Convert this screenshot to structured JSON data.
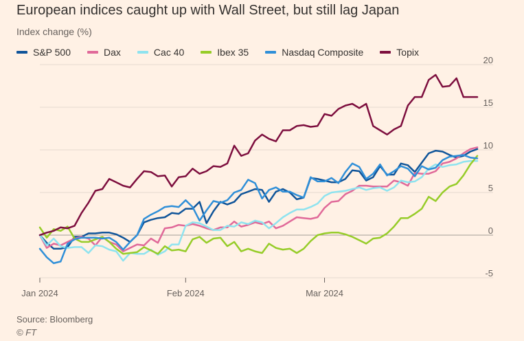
{
  "chart_data": {
    "type": "line",
    "title": "European indices caught up with Wall Street, but still lag Japan",
    "subtitle": "Index change (%)",
    "xlabel": "",
    "ylabel": "",
    "ylim": [
      -5,
      20
    ],
    "yticks": [
      "20",
      "15",
      "10",
      "5",
      "0",
      "-5"
    ],
    "yticks_values": [
      20,
      15,
      10,
      5,
      0,
      -5
    ],
    "xticks": [
      "Jan 2024",
      "Feb 2024",
      "Mar 2024"
    ],
    "xticks_index": [
      0,
      21,
      41
    ],
    "x_points": 64,
    "grid": true,
    "legend_position": "top",
    "series": [
      {
        "name": "S&P 500",
        "color": "#0f5499",
        "values": [
          0,
          -0.9,
          -1.6,
          -1.6,
          -1.4,
          -0.2,
          -0.2,
          0.2,
          0.2,
          0.3,
          0.3,
          0.1,
          -0.3,
          -0.8,
          0,
          1.5,
          1.8,
          2,
          2.1,
          2.6,
          2.5,
          3.1,
          3.1,
          3.9,
          1.4,
          2.8,
          3.9,
          3.6,
          3.9,
          4.8,
          5.1,
          5.4,
          5.3,
          3.9,
          5.1,
          5.4,
          5,
          4.2,
          4.4,
          6.7,
          6.6,
          6.4,
          6.2,
          6.2,
          6.6,
          7.6,
          7.5,
          6.4,
          6.8,
          8.1,
          7.1,
          7.1,
          8.4,
          8.2,
          7.4,
          8.5,
          9.6,
          9.9,
          9.8,
          9.4,
          9.1,
          9.3,
          9.8,
          10.1
        ]
      },
      {
        "name": "Dax",
        "color": "#e06999",
        "values": [
          0,
          -1.5,
          -1,
          -1.2,
          -0.8,
          -0.4,
          -0.2,
          -0.4,
          -1.2,
          -0.2,
          -0.8,
          -1.1,
          -1.9,
          -1.5,
          -1.1,
          -1.2,
          -0.4,
          -0.9,
          0.8,
          0.9,
          1.2,
          1.1,
          1.3,
          1.1,
          0.8,
          0.6,
          0.9,
          0.9,
          1.6,
          1,
          1.2,
          1.5,
          1.3,
          1.6,
          0.8,
          1.1,
          1.6,
          2.1,
          2,
          1.9,
          2.1,
          3.2,
          3.9,
          4,
          4.8,
          5.2,
          5.8,
          5.8,
          5.7,
          5.7,
          5.7,
          6.4,
          6.2,
          5.8,
          7.3,
          7.2,
          7.2,
          7.5,
          8.4,
          8.6,
          9,
          9.6,
          10.1,
          10.3
        ]
      },
      {
        "name": "Cac 40",
        "color": "#8ee3ef",
        "values": [
          0,
          -1.2,
          -0.4,
          -1.3,
          -1.5,
          -1.4,
          -1.4,
          -2.1,
          -1.2,
          -1.3,
          -1.7,
          -1.9,
          -3,
          -2.1,
          -2.2,
          -2.2,
          -1.7,
          -2.3,
          -1.9,
          -1.1,
          -1.1,
          1.1,
          1.5,
          1.4,
          1,
          0.6,
          0.6,
          1.1,
          1,
          1.5,
          1.3,
          1.7,
          1.5,
          0.8,
          1.4,
          2.1,
          2.6,
          3,
          3,
          3.3,
          3.7,
          4.6,
          5,
          5.1,
          5.2,
          5.4,
          5.6,
          5.3,
          5.5,
          5.6,
          5.2,
          5.6,
          6.4,
          6.2,
          6.3,
          6.8,
          7.8,
          8.3,
          8,
          8.2,
          8.3,
          8.6,
          8.7,
          8.7
        ]
      },
      {
        "name": "Ibex 35",
        "color": "#96cc28",
        "values": [
          0.9,
          -0.3,
          0.7,
          0.5,
          1,
          -0.4,
          -0.8,
          -0.8,
          -0.5,
          -0.2,
          -0.8,
          -1.6,
          -2.2,
          -2.1,
          -2,
          -1.4,
          -1.8,
          -2.2,
          -1.3,
          -1.8,
          -1.7,
          -1.9,
          -0.5,
          -0.2,
          -0.9,
          -0.4,
          -0.3,
          -1.3,
          -0.8,
          -1.9,
          -1.6,
          -1.9,
          -2.1,
          -1,
          -1.5,
          -1.7,
          -1.6,
          -2.1,
          -1.6,
          -0.7,
          0,
          0.2,
          0.3,
          0.3,
          0.1,
          -0.2,
          -0.6,
          -1,
          -0.4,
          -0.3,
          0.2,
          1,
          2,
          2,
          2.5,
          3.1,
          4.5,
          4,
          5,
          5.7,
          6,
          7,
          8.3,
          9.3
        ]
      },
      {
        "name": "Nasdaq Composite",
        "color": "#2f8fd8",
        "values": [
          -1.6,
          -2.6,
          -3.3,
          -3.1,
          -1,
          -0.5,
          -0.3,
          -0.3,
          -0.3,
          -0.4,
          -0.3,
          -0.8,
          -1.7,
          -0.8,
          0,
          1.9,
          2.4,
          2.8,
          3.3,
          3.4,
          3.3,
          4.1,
          3.3,
          1.7,
          2.9,
          4,
          3.8,
          4.1,
          5,
          5.3,
          6.5,
          6.1,
          4.3,
          5.3,
          5.6,
          5.1,
          5.1,
          4.7,
          4.4,
          6.8,
          6.3,
          6.3,
          6.7,
          6.1,
          7.4,
          8.4,
          8,
          6.6,
          7.2,
          8.3,
          7,
          7.5,
          8.1,
          7.8,
          6.9,
          8.1,
          7.7,
          7.9,
          8.8,
          9.2,
          9.3,
          9.4,
          9.1,
          9
        ]
      },
      {
        "name": "Topix",
        "color": "#7d0e3e",
        "values": [
          0,
          0.3,
          0.5,
          0.9,
          0.8,
          1.1,
          2.6,
          3.8,
          5.2,
          5.4,
          6.6,
          6.2,
          5.8,
          5.6,
          6.6,
          7.5,
          7.4,
          6.9,
          7,
          5.7,
          6.8,
          6.9,
          7.8,
          7.2,
          7.5,
          8.1,
          8,
          8.4,
          10.5,
          9.3,
          9.6,
          11.1,
          11.8,
          11.3,
          11,
          12.3,
          12.3,
          12.8,
          12.9,
          12.7,
          12.8,
          14.2,
          14,
          14.8,
          15.2,
          15.4,
          14.9,
          15.4,
          12.8,
          12.3,
          11.8,
          12.4,
          12.8,
          15.2,
          16.2,
          16.2,
          18.2,
          18.8,
          17.4,
          17.5,
          18.4,
          16.2,
          16.2,
          16.2
        ]
      }
    ]
  },
  "source": "Source: Bloomberg",
  "credit": "© FT"
}
